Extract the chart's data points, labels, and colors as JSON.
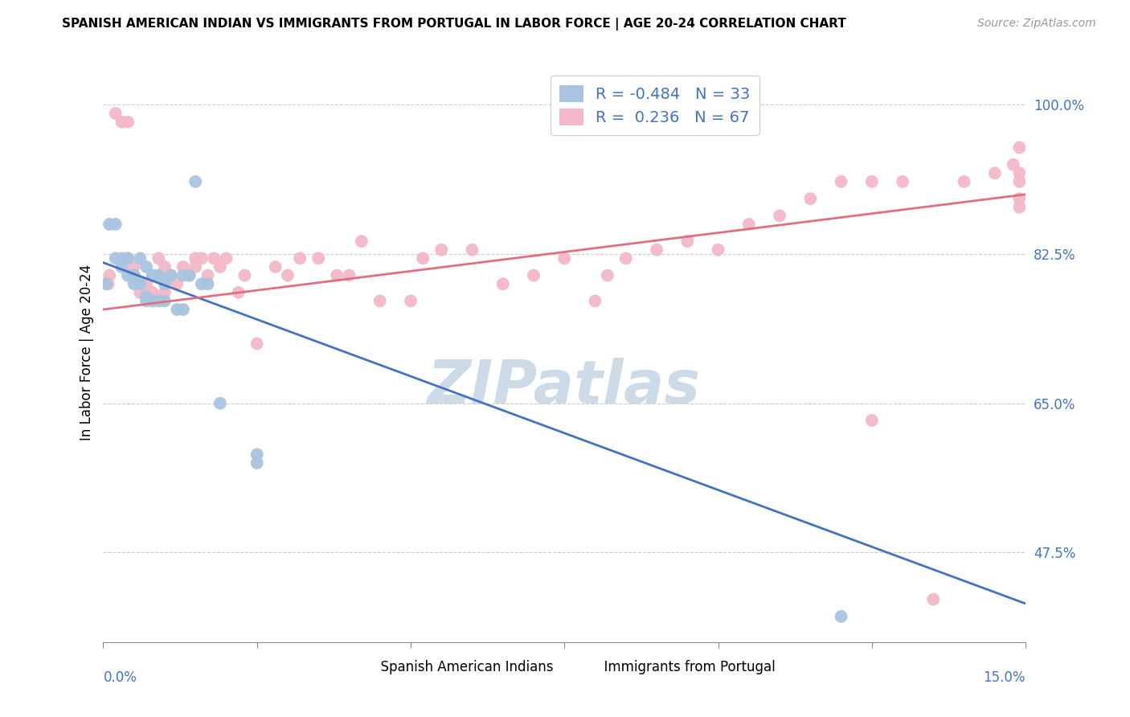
{
  "title": "SPANISH AMERICAN INDIAN VS IMMIGRANTS FROM PORTUGAL IN LABOR FORCE | AGE 20-24 CORRELATION CHART",
  "source": "Source: ZipAtlas.com",
  "ylabel": "In Labor Force | Age 20-24",
  "ytick_labels": [
    "100.0%",
    "82.5%",
    "65.0%",
    "47.5%"
  ],
  "ytick_values": [
    1.0,
    0.825,
    0.65,
    0.475
  ],
  "xmin": 0.0,
  "xmax": 0.15,
  "ymin": 0.37,
  "ymax": 1.05,
  "blue_scatter_color": "#a8c4e0",
  "pink_scatter_color": "#f4b8c8",
  "blue_line_color": "#4472c4",
  "pink_line_color": "#e07080",
  "legend_text_color": "#4472c4",
  "R_blue": -0.484,
  "N_blue": 33,
  "R_pink": 0.236,
  "N_pink": 67,
  "watermark": "ZIPatlas",
  "watermark_color": "#cddae8",
  "blue_line_x0": 0.0,
  "blue_line_y0": 0.815,
  "blue_line_x1": 0.15,
  "blue_line_y1": 0.415,
  "pink_line_x0": 0.0,
  "pink_line_y0": 0.76,
  "pink_line_x1": 0.15,
  "pink_line_y1": 0.895,
  "blue_points_x": [
    0.0005,
    0.001,
    0.002,
    0.002,
    0.003,
    0.003,
    0.004,
    0.004,
    0.005,
    0.005,
    0.006,
    0.006,
    0.007,
    0.007,
    0.007,
    0.008,
    0.008,
    0.009,
    0.009,
    0.01,
    0.01,
    0.011,
    0.012,
    0.013,
    0.013,
    0.014,
    0.015,
    0.016,
    0.017,
    0.019,
    0.025,
    0.025,
    0.12
  ],
  "blue_points_y": [
    0.79,
    0.86,
    0.86,
    0.82,
    0.82,
    0.81,
    0.82,
    0.8,
    0.8,
    0.79,
    0.79,
    0.82,
    0.775,
    0.77,
    0.81,
    0.77,
    0.8,
    0.77,
    0.8,
    0.77,
    0.79,
    0.8,
    0.76,
    0.76,
    0.8,
    0.8,
    0.91,
    0.79,
    0.79,
    0.65,
    0.59,
    0.58,
    0.4
  ],
  "pink_points_x": [
    0.0008,
    0.001,
    0.002,
    0.003,
    0.004,
    0.004,
    0.005,
    0.005,
    0.006,
    0.007,
    0.008,
    0.008,
    0.009,
    0.009,
    0.01,
    0.01,
    0.011,
    0.012,
    0.013,
    0.014,
    0.015,
    0.015,
    0.016,
    0.017,
    0.018,
    0.019,
    0.02,
    0.022,
    0.023,
    0.025,
    0.028,
    0.03,
    0.032,
    0.035,
    0.038,
    0.04,
    0.042,
    0.045,
    0.05,
    0.052,
    0.055,
    0.06,
    0.065,
    0.07,
    0.075,
    0.08,
    0.082,
    0.085,
    0.09,
    0.095,
    0.1,
    0.105,
    0.11,
    0.115,
    0.12,
    0.125,
    0.125,
    0.13,
    0.135,
    0.14,
    0.145,
    0.148,
    0.149,
    0.149,
    0.149,
    0.149,
    0.149
  ],
  "pink_points_y": [
    0.79,
    0.8,
    0.99,
    0.98,
    0.98,
    0.82,
    0.8,
    0.81,
    0.78,
    0.79,
    0.78,
    0.8,
    0.8,
    0.82,
    0.78,
    0.81,
    0.8,
    0.79,
    0.81,
    0.8,
    0.81,
    0.82,
    0.82,
    0.8,
    0.82,
    0.81,
    0.82,
    0.78,
    0.8,
    0.72,
    0.81,
    0.8,
    0.82,
    0.82,
    0.8,
    0.8,
    0.84,
    0.77,
    0.77,
    0.82,
    0.83,
    0.83,
    0.79,
    0.8,
    0.82,
    0.77,
    0.8,
    0.82,
    0.83,
    0.84,
    0.83,
    0.86,
    0.87,
    0.89,
    0.91,
    0.91,
    0.63,
    0.91,
    0.42,
    0.91,
    0.92,
    0.93,
    0.95,
    0.92,
    0.91,
    0.88,
    0.89
  ]
}
